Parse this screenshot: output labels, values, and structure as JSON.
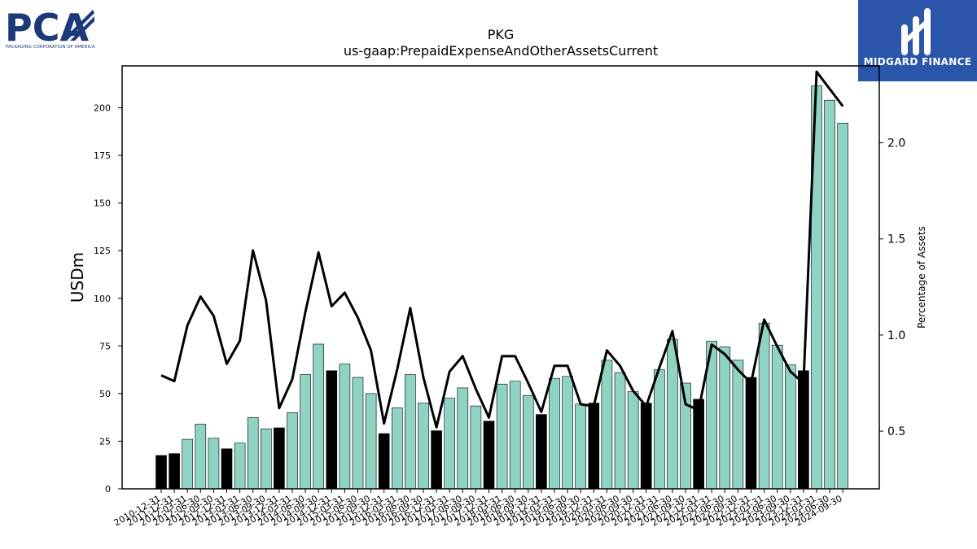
{
  "logos": {
    "left": {
      "company": "PCA",
      "subtitle": "PACKAGING CORPORATION OF AMERICA",
      "color": "#1d3a78"
    },
    "right": {
      "brand": "MIDGARD FINANCE",
      "background": "#2a55a8"
    }
  },
  "chart_data": {
    "type": "bar",
    "title": "PKG",
    "subtitle": "us-gaap:PrepaidExpenseAndOtherAssetsCurrent",
    "ylabel": "USDm",
    "y2label": "Percentage of Assets",
    "ylim": [
      0,
      222
    ],
    "y2lim": [
      0.2,
      2.4
    ],
    "yticks": [
      0,
      25,
      50,
      75,
      100,
      125,
      150,
      175,
      200
    ],
    "y2ticks": [
      0.5,
      1.0,
      1.5,
      2.0
    ],
    "colors": {
      "q4_bar": "#000000",
      "other_bar": "#8fd3c5",
      "line": "#000000"
    },
    "categories": [
      "2010-12-31",
      "2011-12-31",
      "2012-03-31",
      "2012-06-30",
      "2012-09-30",
      "2012-12-31",
      "2013-03-31",
      "2013-06-30",
      "2013-09-30",
      "2013-12-31",
      "2014-03-31",
      "2014-06-30",
      "2014-09-30",
      "2014-12-31",
      "2015-03-31",
      "2015-06-30",
      "2015-09-30",
      "2015-12-31",
      "2016-03-31",
      "2016-06-30",
      "2016-09-30",
      "2016-12-31",
      "2017-03-31",
      "2017-06-30",
      "2017-09-30",
      "2017-12-31",
      "2018-03-31",
      "2018-06-30",
      "2018-09-30",
      "2018-12-31",
      "2019-03-31",
      "2019-06-30",
      "2019-09-30",
      "2019-12-31",
      "2020-03-31",
      "2020-06-30",
      "2020-09-30",
      "2020-12-31",
      "2021-03-31",
      "2021-06-30",
      "2021-09-30",
      "2021-12-31",
      "2022-03-31",
      "2022-06-30",
      "2022-09-30",
      "2022-12-31",
      "2023-03-31",
      "2023-06-30",
      "2023-09-30",
      "2023-12-31",
      "2024-03-31",
      "2024-06-30",
      "2024-09-30"
    ],
    "series": [
      {
        "values": [
          17.5,
          18.5,
          26,
          34,
          26.5,
          21,
          24,
          37.5,
          31.5,
          32,
          40,
          60,
          76,
          62,
          65.5,
          58.5,
          50,
          29,
          42.5,
          60,
          45,
          30.5,
          47.5,
          53,
          43.5,
          35.5,
          55,
          56.5,
          49,
          39,
          58,
          59,
          44.5,
          45,
          67.5,
          61,
          51,
          45,
          62.5,
          78.5,
          55.5,
          47,
          77.5,
          74.5,
          67.5,
          58.5,
          87,
          75.5,
          65,
          62,
          211.5,
          204,
          192
        ]
      },
      {
        "values": [
          0.79,
          0.76,
          1.05,
          1.2,
          1.1,
          0.85,
          0.97,
          1.44,
          1.18,
          0.62,
          0.77,
          1.12,
          1.43,
          1.15,
          1.22,
          1.09,
          0.92,
          0.54,
          0.82,
          1.14,
          0.78,
          0.52,
          0.81,
          0.89,
          0.72,
          0.57,
          0.89,
          0.89,
          0.75,
          0.6,
          0.84,
          0.84,
          0.64,
          0.63,
          0.92,
          0.84,
          0.71,
          0.63,
          0.83,
          1.02,
          0.64,
          0.61,
          0.95,
          0.9,
          0.82,
          0.75,
          1.08,
          0.94,
          0.81,
          0.75,
          2.37,
          2.28,
          2.19
        ]
      }
    ]
  }
}
